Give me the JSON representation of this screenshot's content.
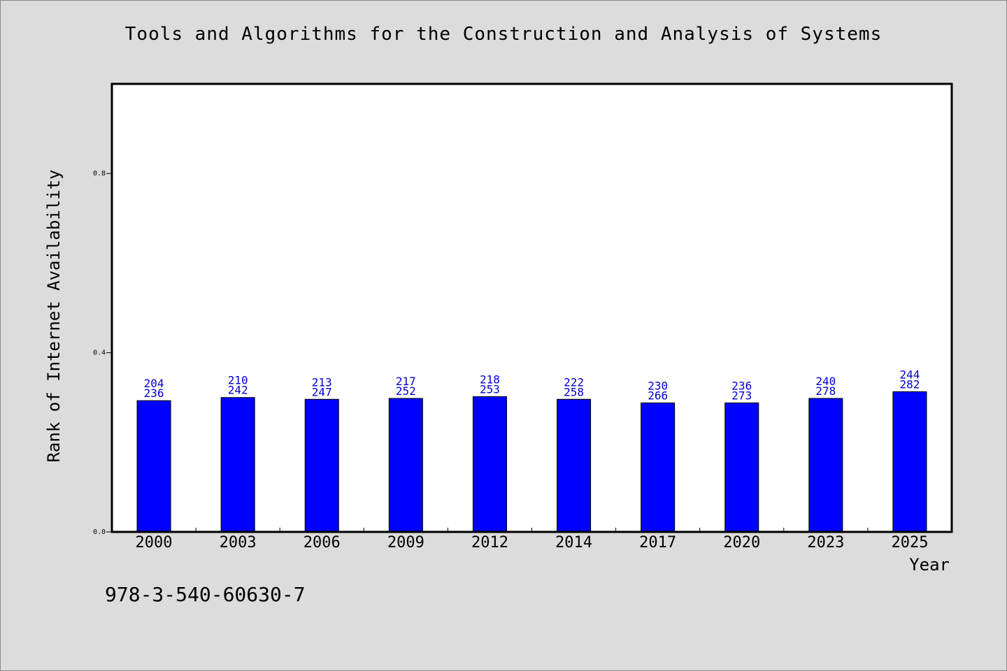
{
  "page": {
    "title": "Tools and Algorithms for the Construction and Analysis of Systems",
    "footer_code": "978-3-540-60630-7"
  },
  "chart_data": {
    "type": "bar",
    "title": "Tools and Algorithms for the Construction and Analysis of Systems",
    "xlabel": "Year",
    "ylabel": "Rank of Internet Availability",
    "categories": [
      "2000",
      "2003",
      "2006",
      "2009",
      "2012",
      "2014",
      "2017",
      "2020",
      "2023",
      "2025"
    ],
    "values": [
      0.293,
      0.3,
      0.296,
      0.298,
      0.302,
      0.296,
      0.288,
      0.288,
      0.298,
      0.313
    ],
    "label_top": [
      "204",
      "210",
      "213",
      "217",
      "218",
      "222",
      "230",
      "236",
      "240",
      "244"
    ],
    "label_bottom": [
      "236",
      "242",
      "247",
      "252",
      "253",
      "258",
      "266",
      "273",
      "278",
      "282"
    ],
    "y_ticks": [
      "0.0",
      "0.4",
      "0.8"
    ],
    "ylim": [
      0,
      1.0
    ],
    "grid": false,
    "legend": "none",
    "colors": {
      "bar": "#0000ff",
      "bar_label": "#0000cc",
      "background": "#dcdcdc",
      "plot_area": "#ffffff"
    }
  }
}
